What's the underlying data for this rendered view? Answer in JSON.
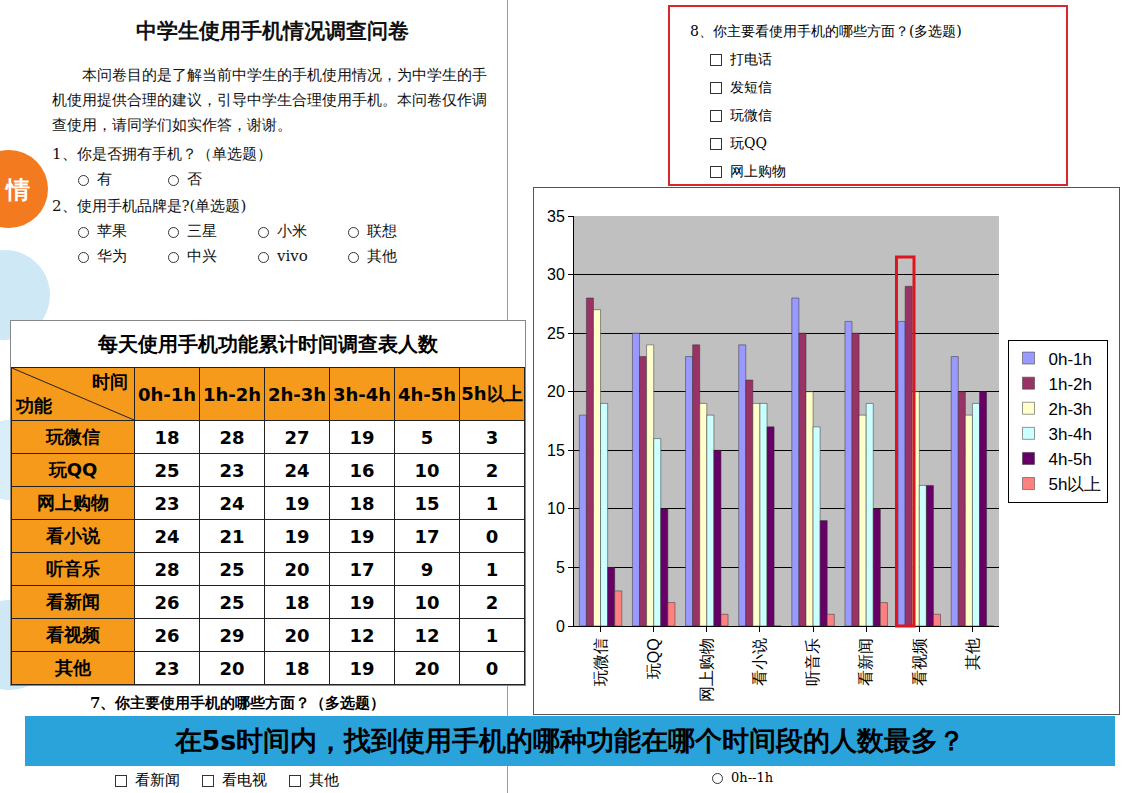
{
  "side_tab": "情",
  "document": {
    "title": "中学生使用手机情况调查问卷",
    "intro": "本问卷目的是了解当前中学生的手机使用情况，为中学生的手机使用提供合理的建议，引导中学生合理使用手机。本问卷仅作调查使用，请同学们如实作答，谢谢。",
    "questions": [
      {
        "text": "1、你是否拥有手机？（单选题）",
        "options": [
          "有",
          "否"
        ]
      },
      {
        "text": "2、使用手机品牌是?(单选题)",
        "options": [
          "苹果",
          "三星",
          "小米",
          "联想",
          "华为",
          "中兴",
          "vivo",
          "其他"
        ]
      }
    ],
    "question7": {
      "text": "7、你主要使用手机的哪些方面？（多选题）",
      "options": [
        "看新闻",
        "看电视",
        "其他"
      ]
    }
  },
  "question8": {
    "text": "8、你主要看使用手机的哪些方面？(多选题)",
    "options": [
      "打电话",
      "发短信",
      "玩微信",
      "玩QQ",
      "网上购物"
    ],
    "partial_option": "0h--1h"
  },
  "table": {
    "title": "每天使用手机功能累计时间调查表人数",
    "corner": {
      "top": "时间",
      "bottom": "功能"
    },
    "columns": [
      "0h-1h",
      "1h-2h",
      "2h-3h",
      "3h-4h",
      "4h-5h",
      "5h以上"
    ],
    "rows": [
      [
        "玩微信",
        18,
        28,
        27,
        19,
        5,
        3
      ],
      [
        "玩QQ",
        25,
        23,
        24,
        16,
        10,
        2
      ],
      [
        "网上购物",
        23,
        24,
        19,
        18,
        15,
        1
      ],
      [
        "看小说",
        24,
        21,
        19,
        19,
        17,
        0
      ],
      [
        "听音乐",
        28,
        25,
        20,
        17,
        9,
        1
      ],
      [
        "看新闻",
        26,
        25,
        18,
        19,
        10,
        2
      ],
      [
        "看视频",
        26,
        29,
        20,
        12,
        12,
        1
      ],
      [
        "其他",
        23,
        20,
        18,
        19,
        20,
        0
      ]
    ]
  },
  "chart_data": {
    "type": "bar",
    "categories": [
      "玩微信",
      "玩QQ",
      "网上购物",
      "看小说",
      "听音乐",
      "看新闻",
      "看视频",
      "其他"
    ],
    "series": [
      {
        "name": "0h-1h",
        "color": "#9999ff",
        "values": [
          18,
          25,
          23,
          24,
          28,
          26,
          26,
          23
        ]
      },
      {
        "name": "1h-2h",
        "color": "#993366",
        "values": [
          28,
          23,
          24,
          21,
          25,
          25,
          29,
          20
        ]
      },
      {
        "name": "2h-3h",
        "color": "#ffffcc",
        "values": [
          27,
          24,
          19,
          19,
          20,
          18,
          20,
          18
        ]
      },
      {
        "name": "3h-4h",
        "color": "#ccffff",
        "values": [
          19,
          16,
          18,
          19,
          17,
          19,
          12,
          19
        ]
      },
      {
        "name": "4h-5h",
        "color": "#660066",
        "values": [
          5,
          10,
          15,
          17,
          9,
          10,
          12,
          20
        ]
      },
      {
        "name": "5h以上",
        "color": "#ff8080",
        "values": [
          3,
          2,
          1,
          0,
          1,
          2,
          1,
          0
        ]
      }
    ],
    "ylim": [
      0,
      35
    ],
    "yticks": [
      0,
      5,
      10,
      15,
      20,
      25,
      30,
      35
    ],
    "grid": true,
    "legend": "right"
  },
  "banner": "在5s时间内，找到使用手机的哪种功能在哪个时间段的人数最多？"
}
